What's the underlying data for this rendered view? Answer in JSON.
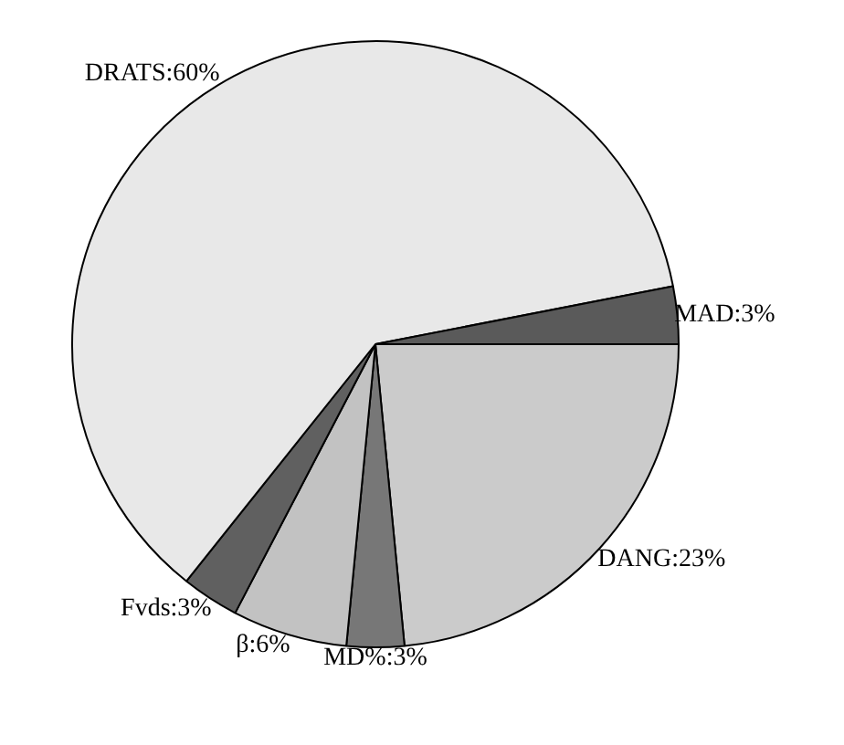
{
  "chart_data": {
    "type": "pie",
    "categories": [
      "DANG",
      "MD%",
      "β",
      "Fvds",
      "DRATS",
      "MAD"
    ],
    "values": [
      23,
      3,
      6,
      3,
      60,
      3
    ],
    "colors": [
      "#cbcbcb",
      "#777777",
      "#c2c2c2",
      "#606060",
      "#e8e8e8",
      "#5a5a5a"
    ],
    "value_labels": [
      "23%",
      "3%",
      "6%",
      "3%",
      "60%",
      "3%"
    ]
  }
}
